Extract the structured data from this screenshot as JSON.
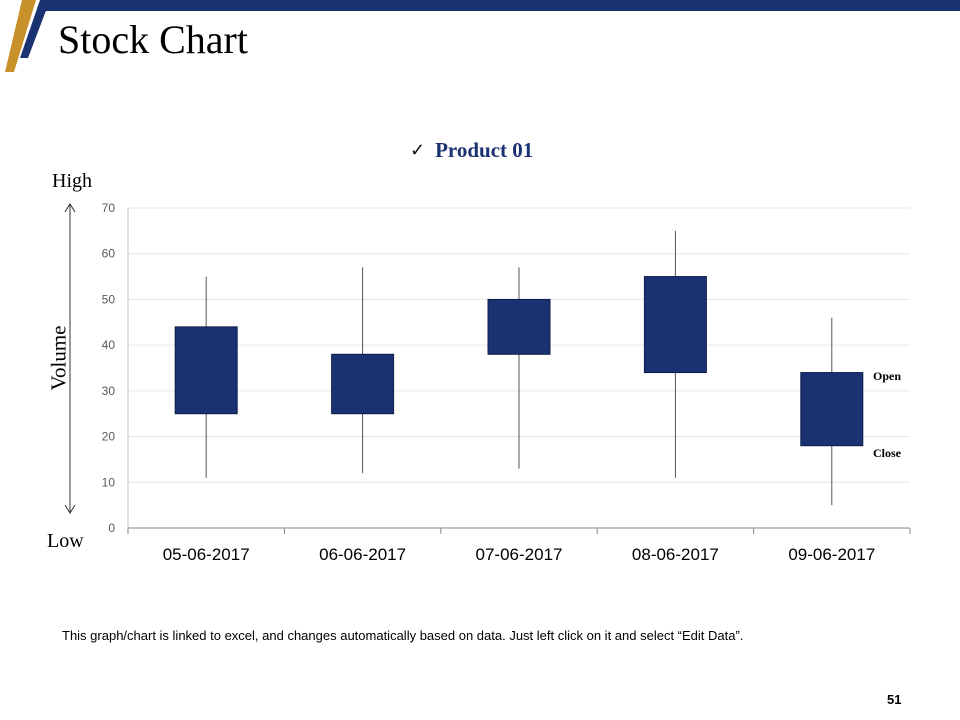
{
  "slide": {
    "title": "Stock Chart",
    "footnote": "This graph/chart is linked to excel, and changes automatically  based on data. Just left click on it and select “Edit Data”.",
    "page_number": "51"
  },
  "side_labels": {
    "high": "High",
    "low": "Low",
    "axis_title": "Volume"
  },
  "annotations": {
    "open": "Open",
    "close": "Close"
  },
  "colors": {
    "brand_navy": "#1b3272",
    "accent_gold": "#c8912b"
  },
  "chart_data": {
    "type": "candlestick",
    "legend": {
      "label": "Product 01",
      "marker": "✓"
    },
    "categories": [
      "05-06-2017",
      "06-06-2017",
      "07-06-2017",
      "08-06-2017",
      "09-06-2017"
    ],
    "series": [
      {
        "name": "Product 01",
        "high": [
          55,
          57,
          57,
          65,
          46
        ],
        "low": [
          11,
          12,
          13,
          11,
          5
        ],
        "open": [
          44,
          38,
          50,
          55,
          34
        ],
        "close": [
          25,
          25,
          38,
          34,
          18
        ]
      }
    ],
    "y_ticks": [
      "0",
      "10",
      "20",
      "30",
      "40",
      "50",
      "60",
      "70"
    ],
    "ylim": [
      0,
      70
    ],
    "grid": true
  }
}
